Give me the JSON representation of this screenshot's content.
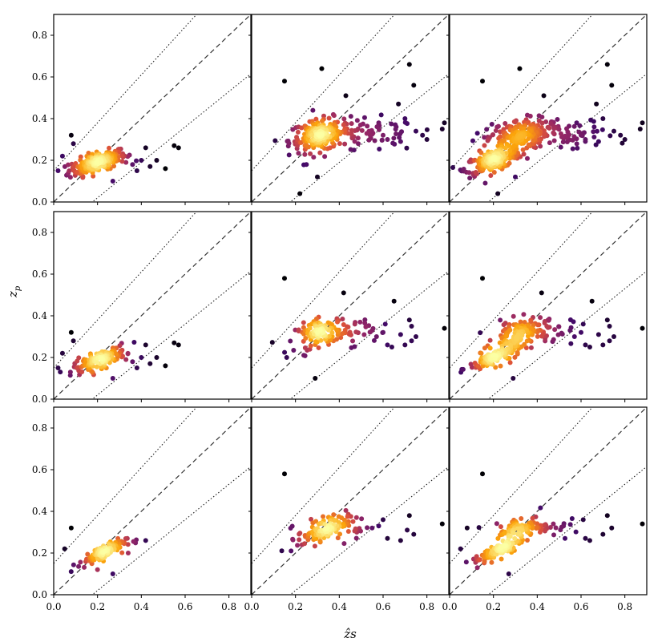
{
  "chart_data": {
    "type": "scatter",
    "layout": "3x3 grid, shared axes",
    "xlabel": "ẑs",
    "ylabel_main": "z",
    "ylabel_sub": "p",
    "xlim": [
      0.0,
      0.9
    ],
    "ylim": [
      0.0,
      0.9
    ],
    "x_ticks": [
      0.0,
      0.2,
      0.4,
      0.6,
      0.8
    ],
    "x_tick_labels": [
      "0.0",
      "0.2",
      "0.4",
      "0.6",
      "0.8"
    ],
    "y_ticks": [
      0.0,
      0.2,
      0.4,
      0.6,
      0.8
    ],
    "y_tick_labels": [
      "0.0",
      "0.2",
      "0.4",
      "0.6",
      "0.8"
    ],
    "reference_lines": [
      {
        "name": "one-to-one",
        "style": "dashed",
        "slope": 1.0,
        "intercept": 0.0
      },
      {
        "name": "upper-bound",
        "style": "dotted",
        "slope": 1.15,
        "intercept": 0.15
      },
      {
        "name": "lower-bound",
        "style": "dotted",
        "slope": 0.85,
        "intercept": -0.15
      }
    ],
    "colormap": [
      "#000004",
      "#420a68",
      "#932667",
      "#dd513a",
      "#fca50a",
      "#fcffa4"
    ],
    "outliers": {
      "A": [
        [
          0.08,
          0.32
        ],
        [
          0.09,
          0.28
        ],
        [
          0.04,
          0.22
        ],
        [
          0.42,
          0.26
        ],
        [
          0.44,
          0.17
        ],
        [
          0.4,
          0.2
        ],
        [
          0.38,
          0.15
        ],
        [
          0.36,
          0.18
        ],
        [
          0.55,
          0.27
        ],
        [
          0.57,
          0.26
        ],
        [
          0.51,
          0.16
        ],
        [
          0.27,
          0.1
        ],
        [
          0.02,
          0.15
        ],
        [
          0.47,
          0.2
        ],
        [
          0.33,
          0.19
        ]
      ],
      "B": [
        [
          0.15,
          0.58
        ],
        [
          0.32,
          0.64
        ],
        [
          0.43,
          0.51
        ],
        [
          0.72,
          0.66
        ],
        [
          0.74,
          0.56
        ],
        [
          0.7,
          0.4
        ],
        [
          0.67,
          0.47
        ],
        [
          0.88,
          0.38
        ],
        [
          0.87,
          0.35
        ],
        [
          0.6,
          0.32
        ],
        [
          0.62,
          0.3
        ],
        [
          0.75,
          0.34
        ],
        [
          0.78,
          0.32
        ],
        [
          0.66,
          0.36
        ],
        [
          0.58,
          0.38
        ],
        [
          0.22,
          0.04
        ],
        [
          0.25,
          0.18
        ],
        [
          0.3,
          0.12
        ],
        [
          0.68,
          0.29
        ],
        [
          0.8,
          0.3
        ]
      ],
      "C": [
        [
          0.15,
          0.58
        ],
        [
          0.42,
          0.51
        ],
        [
          0.61,
          0.36
        ],
        [
          0.6,
          0.32
        ],
        [
          0.65,
          0.47
        ],
        [
          0.72,
          0.38
        ],
        [
          0.73,
          0.35
        ],
        [
          0.88,
          0.34
        ],
        [
          0.7,
          0.26
        ],
        [
          0.73,
          0.28
        ],
        [
          0.75,
          0.3
        ],
        [
          0.62,
          0.26
        ],
        [
          0.64,
          0.25
        ],
        [
          0.55,
          0.33
        ],
        [
          0.57,
          0.3
        ],
        [
          0.29,
          0.1
        ],
        [
          0.16,
          0.2
        ],
        [
          0.68,
          0.31
        ]
      ],
      "D": [
        [
          0.08,
          0.32
        ],
        [
          0.42,
          0.26
        ],
        [
          0.27,
          0.1
        ],
        [
          0.05,
          0.22
        ],
        [
          0.34,
          0.2
        ],
        [
          0.2,
          0.12
        ]
      ],
      "E": [
        [
          0.15,
          0.58
        ],
        [
          0.6,
          0.36
        ],
        [
          0.62,
          0.27
        ],
        [
          0.71,
          0.31
        ],
        [
          0.72,
          0.38
        ],
        [
          0.68,
          0.26
        ],
        [
          0.74,
          0.29
        ],
        [
          0.87,
          0.34
        ],
        [
          0.55,
          0.32
        ],
        [
          0.18,
          0.21
        ],
        [
          0.58,
          0.33
        ]
      ],
      "F": [
        [
          0.15,
          0.58
        ],
        [
          0.61,
          0.36
        ],
        [
          0.62,
          0.27
        ],
        [
          0.64,
          0.26
        ],
        [
          0.7,
          0.29
        ],
        [
          0.72,
          0.38
        ],
        [
          0.74,
          0.32
        ],
        [
          0.88,
          0.34
        ],
        [
          0.52,
          0.33
        ],
        [
          0.27,
          0.1
        ],
        [
          0.08,
          0.32
        ],
        [
          0.05,
          0.22
        ],
        [
          0.17,
          0.21
        ]
      ]
    },
    "panels": [
      {
        "name": "row1-col1",
        "row": 1,
        "col": 1,
        "clusters": [
          {
            "cx": 0.2,
            "cy": 0.19,
            "sx": 0.065,
            "sy": 0.03,
            "rho": 0.65,
            "n": 210
          }
        ],
        "outliers": "A"
      },
      {
        "name": "row1-col2",
        "row": 1,
        "col": 2,
        "clusters": [
          {
            "cx": 0.31,
            "cy": 0.32,
            "sx": 0.07,
            "sy": 0.04,
            "rho": 0.3,
            "n": 200
          },
          {
            "cx": 0.56,
            "cy": 0.32,
            "sx": 0.1,
            "sy": 0.04,
            "rho": 0.0,
            "n": 55
          }
        ],
        "outliers": "B"
      },
      {
        "name": "row1-col3",
        "row": 1,
        "col": 3,
        "clusters": [
          {
            "cx": 0.2,
            "cy": 0.2,
            "sx": 0.065,
            "sy": 0.032,
            "rho": 0.65,
            "n": 200
          },
          {
            "cx": 0.31,
            "cy": 0.32,
            "sx": 0.07,
            "sy": 0.04,
            "rho": 0.3,
            "n": 190
          },
          {
            "cx": 0.56,
            "cy": 0.32,
            "sx": 0.1,
            "sy": 0.04,
            "rho": 0.0,
            "n": 55
          }
        ],
        "outliers": "B"
      },
      {
        "name": "row2-col1",
        "row": 2,
        "col": 1,
        "clusters": [
          {
            "cx": 0.21,
            "cy": 0.19,
            "sx": 0.06,
            "sy": 0.03,
            "rho": 0.75,
            "n": 140
          }
        ],
        "outliers": "A"
      },
      {
        "name": "row2-col2",
        "row": 2,
        "col": 2,
        "clusters": [
          {
            "cx": 0.32,
            "cy": 0.32,
            "sx": 0.06,
            "sy": 0.035,
            "rho": 0.4,
            "n": 110
          },
          {
            "cx": 0.46,
            "cy": 0.33,
            "sx": 0.05,
            "sy": 0.035,
            "rho": 0.0,
            "n": 25
          }
        ],
        "outliers": "C"
      },
      {
        "name": "row2-col3",
        "row": 2,
        "col": 3,
        "clusters": [
          {
            "cx": 0.21,
            "cy": 0.2,
            "sx": 0.06,
            "sy": 0.03,
            "rho": 0.75,
            "n": 130
          },
          {
            "cx": 0.32,
            "cy": 0.32,
            "sx": 0.06,
            "sy": 0.035,
            "rho": 0.4,
            "n": 110
          },
          {
            "cx": 0.46,
            "cy": 0.33,
            "sx": 0.05,
            "sy": 0.035,
            "rho": 0.0,
            "n": 25
          }
        ],
        "outliers": "C"
      },
      {
        "name": "row3-col1",
        "row": 3,
        "col": 1,
        "clusters": [
          {
            "cx": 0.22,
            "cy": 0.2,
            "sx": 0.055,
            "sy": 0.03,
            "rho": 0.8,
            "n": 100
          }
        ],
        "outliers": "D"
      },
      {
        "name": "row3-col2",
        "row": 3,
        "col": 2,
        "clusters": [
          {
            "cx": 0.32,
            "cy": 0.31,
            "sx": 0.055,
            "sy": 0.035,
            "rho": 0.45,
            "n": 90
          },
          {
            "cx": 0.44,
            "cy": 0.33,
            "sx": 0.05,
            "sy": 0.035,
            "rho": 0.0,
            "n": 25
          }
        ],
        "outliers": "E"
      },
      {
        "name": "row3-col3",
        "row": 3,
        "col": 3,
        "clusters": [
          {
            "cx": 0.22,
            "cy": 0.21,
            "sx": 0.055,
            "sy": 0.03,
            "rho": 0.8,
            "n": 95
          },
          {
            "cx": 0.32,
            "cy": 0.31,
            "sx": 0.055,
            "sy": 0.035,
            "rho": 0.45,
            "n": 90
          },
          {
            "cx": 0.44,
            "cy": 0.33,
            "sx": 0.05,
            "sy": 0.035,
            "rho": 0.0,
            "n": 25
          }
        ],
        "outliers": "F"
      }
    ]
  }
}
